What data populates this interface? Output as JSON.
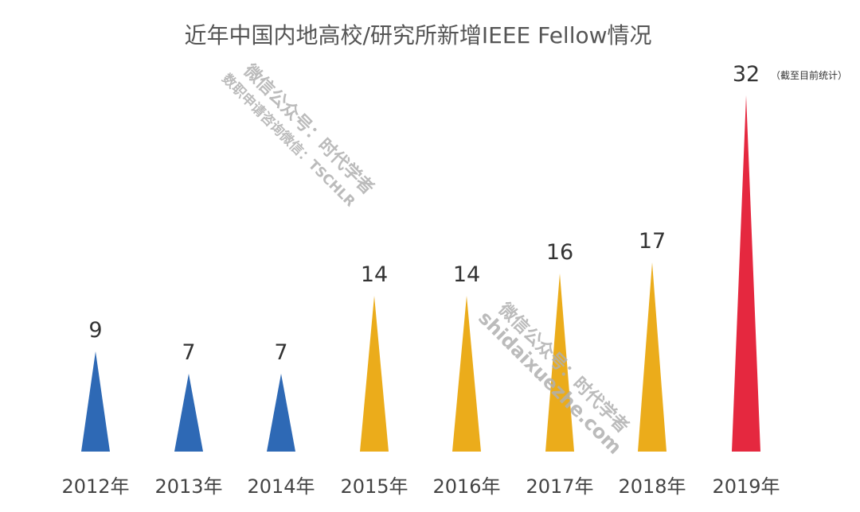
{
  "chart_data": {
    "type": "bar",
    "title": "近年中国内地高校/研究所新增IEEE Fellow情况",
    "categories": [
      "2012年",
      "2013年",
      "2014年",
      "2015年",
      "2016年",
      "2017年",
      "2018年",
      "2019年"
    ],
    "values": [
      9,
      7,
      7,
      14,
      14,
      16,
      17,
      32
    ],
    "value_labels": [
      "9",
      "7",
      "7",
      "14",
      "14",
      "16",
      "17",
      "32"
    ],
    "colors": [
      "#2e69b5",
      "#2e69b5",
      "#2e69b5",
      "#ebac1b",
      "#ebac1b",
      "#ebac1b",
      "#ebac1b",
      "#e5283f"
    ],
    "bar_shape": "triangle",
    "ylim": [
      0,
      32
    ],
    "grid": false,
    "xlabel": "",
    "ylabel": "",
    "annotation": "（截至目前统计）"
  },
  "watermarks": {
    "line1": "微信公众号：时代学者",
    "line2": "数职申请咨询微信：TSCHLR",
    "line3": "微信公众号：时代学者",
    "line4": "shidaixuezhe.com"
  }
}
